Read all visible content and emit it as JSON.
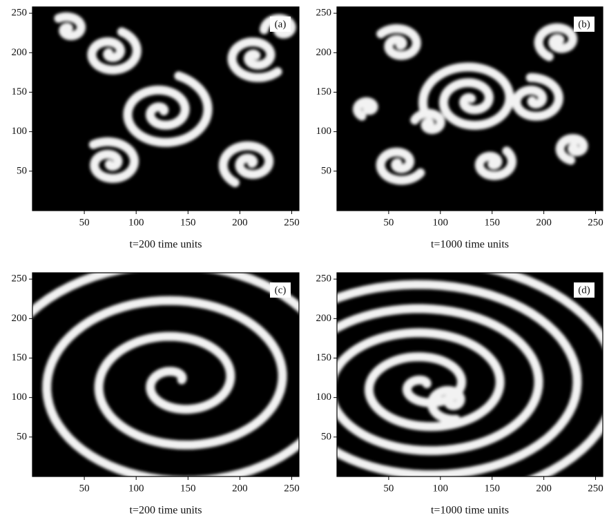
{
  "figure": {
    "panels": [
      {
        "label": "(a)",
        "caption": "t=200 time units",
        "xlim": [
          0,
          257
        ],
        "ylim": [
          0,
          258
        ],
        "xticks": [
          50,
          100,
          150,
          200,
          250
        ],
        "yticks": [
          50,
          100,
          150,
          200,
          250
        ]
      },
      {
        "label": "(b)",
        "caption": "t=1000 time units",
        "xlim": [
          0,
          257
        ],
        "ylim": [
          0,
          258
        ],
        "xticks": [
          50,
          100,
          150,
          200,
          250
        ],
        "yticks": [
          50,
          100,
          150,
          200,
          250
        ]
      },
      {
        "label": "(c)",
        "caption": "t=200 time units",
        "xlim": [
          0,
          257
        ],
        "ylim": [
          0,
          258
        ],
        "xticks": [
          50,
          100,
          150,
          200,
          250
        ],
        "yticks": [
          50,
          100,
          150,
          200,
          250
        ]
      },
      {
        "label": "(d)",
        "caption": "t=1000 time units",
        "xlim": [
          0,
          257
        ],
        "ylim": [
          0,
          258
        ],
        "xticks": [
          50,
          100,
          150,
          200,
          250
        ],
        "yticks": [
          50,
          100,
          150,
          200,
          250
        ]
      }
    ]
  }
}
